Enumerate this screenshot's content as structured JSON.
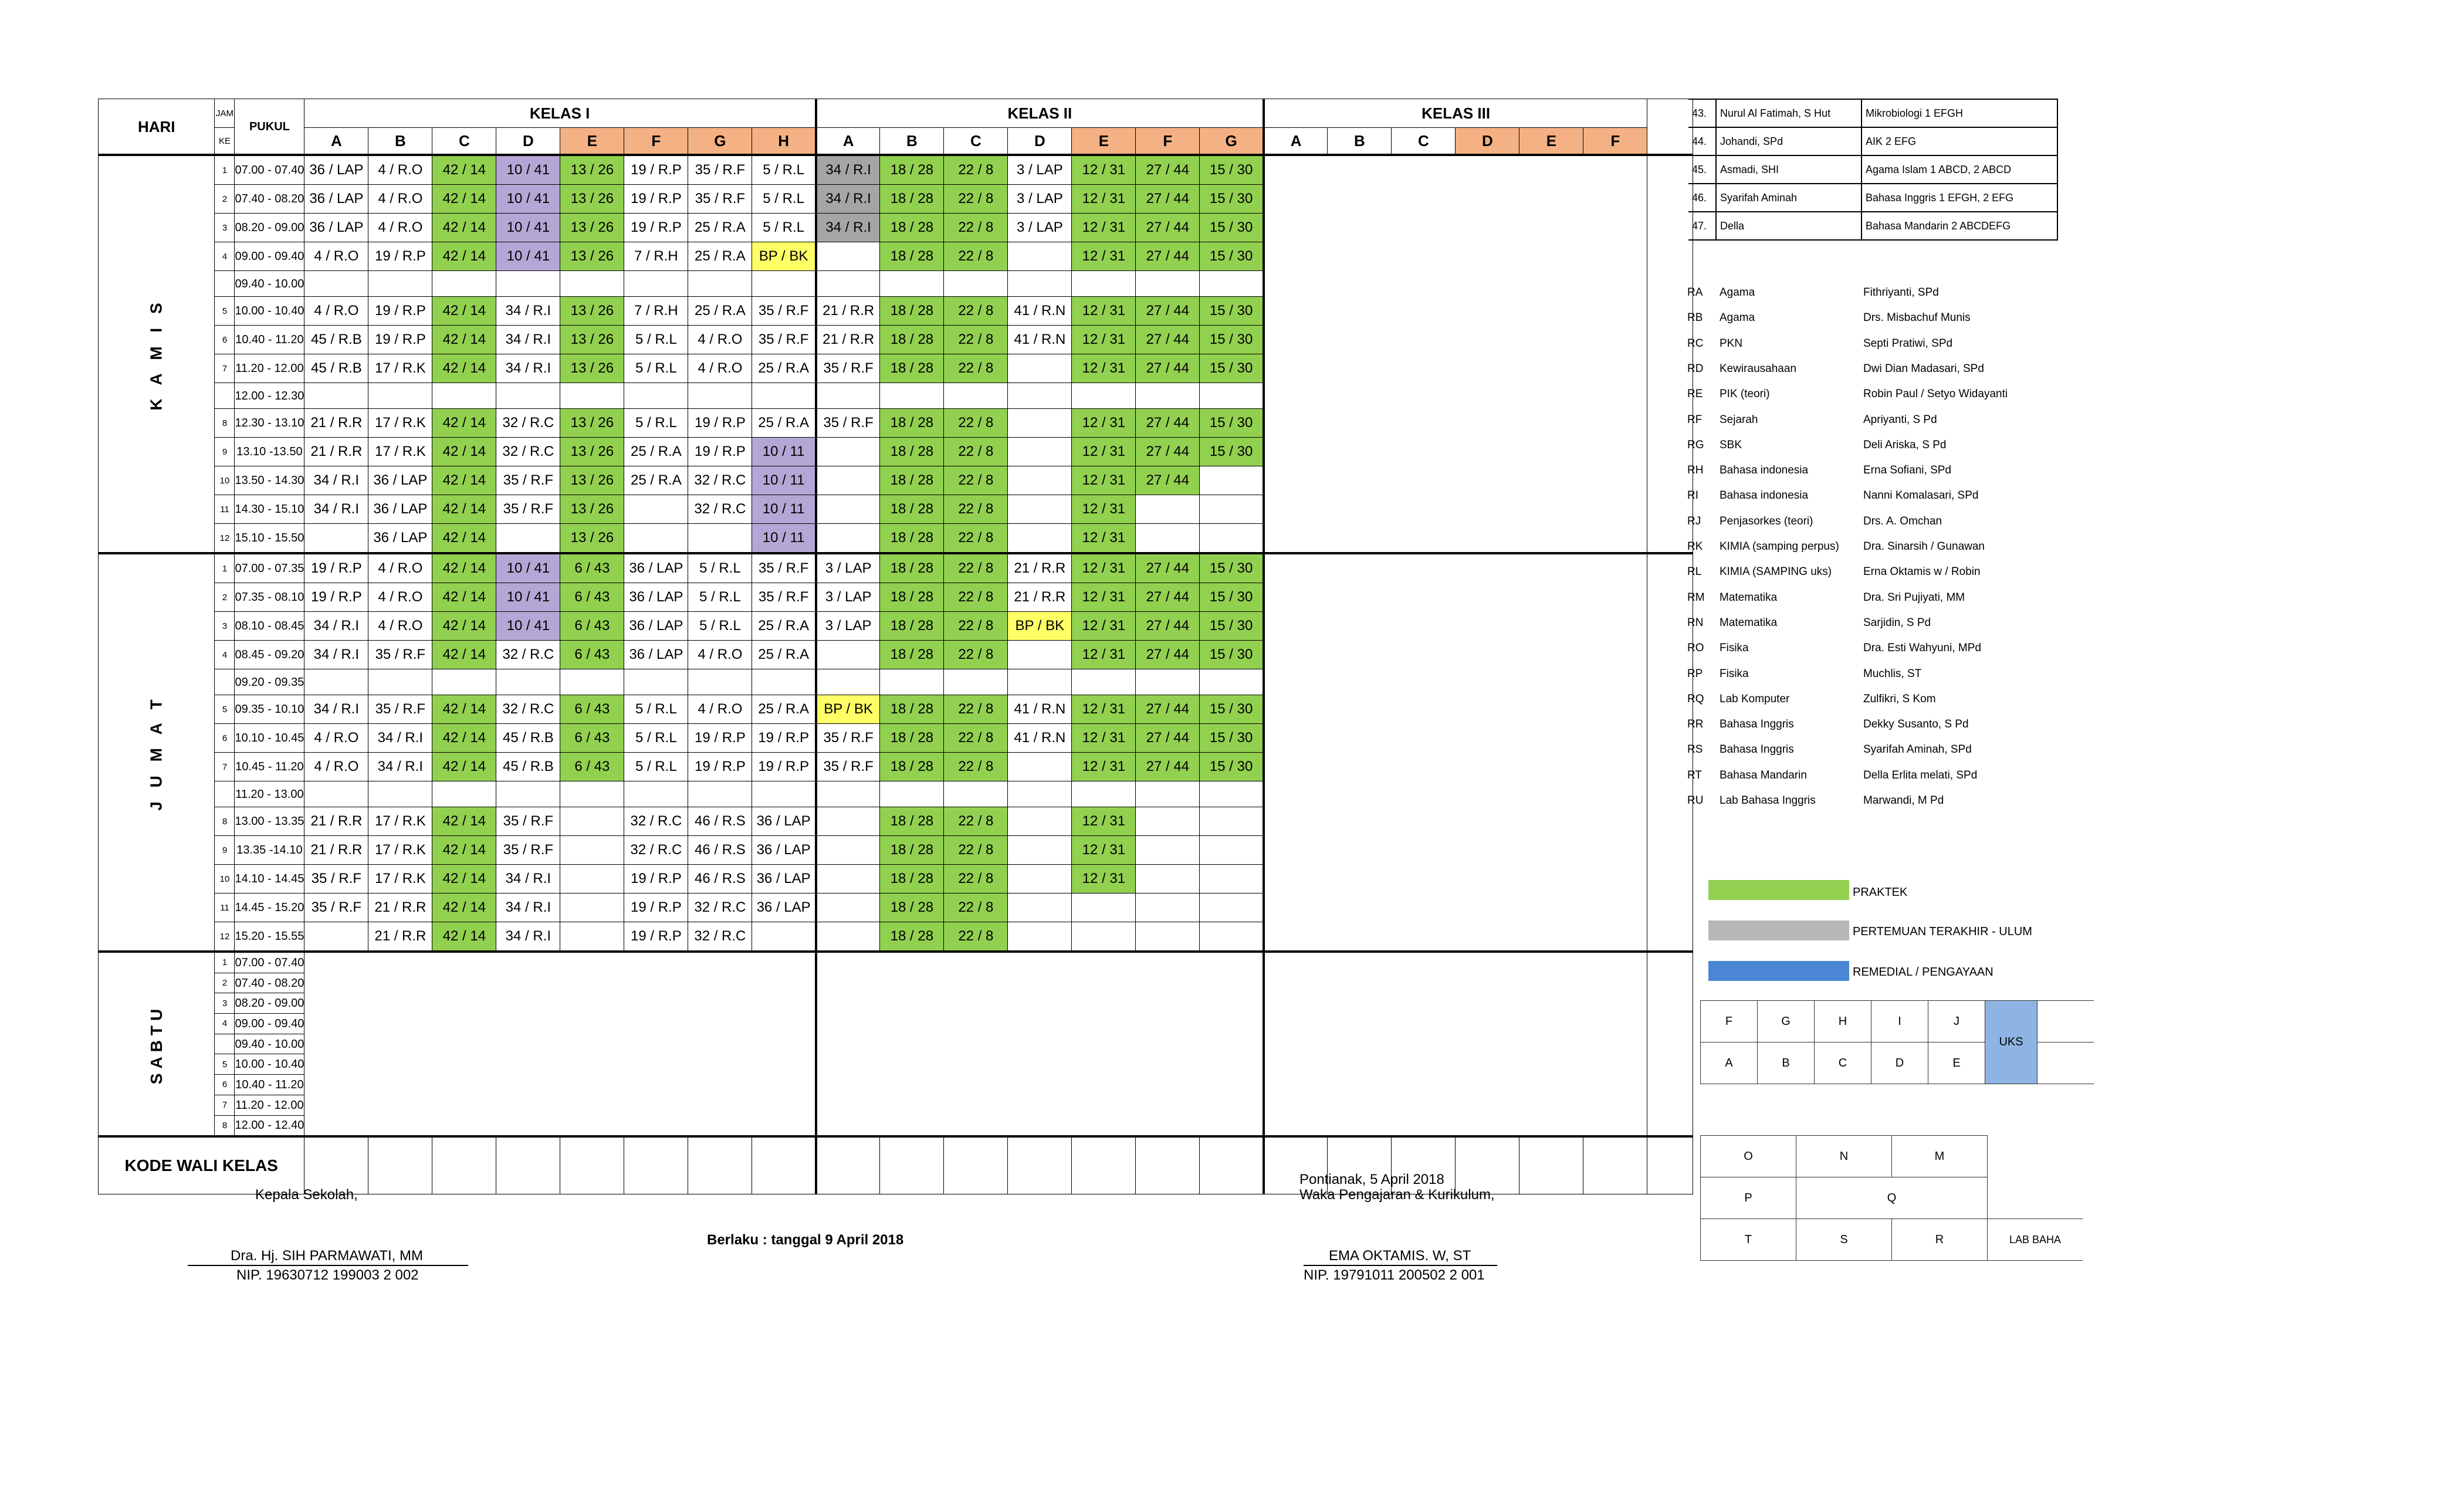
{
  "header": {
    "hari": "HARI",
    "jam_top": "JAM",
    "jam_bottom": "KE",
    "pukul": "PUKUL",
    "kelas1": "KELAS I",
    "kelas2": "KELAS II",
    "kelas3": "KELAS III",
    "classes1": [
      "A",
      "B",
      "C",
      "D",
      "E",
      "F",
      "G",
      "H"
    ],
    "classes2": [
      "A",
      "B",
      "C",
      "D",
      "E",
      "F",
      "G"
    ],
    "classes3": [
      "A",
      "B",
      "C",
      "D",
      "E",
      "F"
    ]
  },
  "days": {
    "kamis": "K A M I S",
    "jumat": "J U M A T",
    "sabtu": "SABTU"
  },
  "kamis_rows": [
    {
      "jam": "1",
      "time": "07.00 - 07.40",
      "k1": [
        "36 / LAP",
        "4 / R.O",
        "42 / 14",
        "10 / 41",
        "13 / 26",
        "19 / R.P",
        "35 / R.F",
        "5 / R.L"
      ],
      "k2": [
        "34 / R.I",
        "18 / 28",
        "22 / 8",
        "3 / LAP",
        "12 / 31",
        "27 / 44",
        "15 / 30"
      ]
    },
    {
      "jam": "2",
      "time": "07.40 - 08.20",
      "k1": [
        "36 / LAP",
        "4 / R.O",
        "42 / 14",
        "10 / 41",
        "13 / 26",
        "19 / R.P",
        "35 / R.F",
        "5 / R.L"
      ],
      "k2": [
        "34 / R.I",
        "18 / 28",
        "22 / 8",
        "3 / LAP",
        "12 / 31",
        "27 / 44",
        "15 / 30"
      ]
    },
    {
      "jam": "3",
      "time": "08.20 - 09.00",
      "k1": [
        "36 / LAP",
        "4 / R.O",
        "42 / 14",
        "10 / 41",
        "13 / 26",
        "19 / R.P",
        "25 / R.A",
        "5 / R.L"
      ],
      "k2": [
        "34 / R.I",
        "18 / 28",
        "22 / 8",
        "3 / LAP",
        "12 / 31",
        "27 / 44",
        "15 / 30"
      ]
    },
    {
      "jam": "4",
      "time": "09.00 - 09.40",
      "k1": [
        "4 / R.O",
        "19 / R.P",
        "42 / 14",
        "10 / 41",
        "13 / 26",
        "7 / R.H",
        "25 / R.A",
        "BP / BK"
      ],
      "k2": [
        "",
        "18 / 28",
        "22 / 8",
        "",
        "12 / 31",
        "27 / 44",
        "15 / 30"
      ]
    },
    {
      "jam": "",
      "time": "09.40 - 10.00",
      "k1": [
        "",
        "",
        "",
        "",
        "",
        "",
        "",
        ""
      ],
      "k2": [
        "",
        "",
        "",
        "",
        "",
        "",
        ""
      ]
    },
    {
      "jam": "5",
      "time": "10.00 - 10.40",
      "k1": [
        "4 / R.O",
        "19 / R.P",
        "42 / 14",
        "34 / R.I",
        "13 / 26",
        "7 / R.H",
        "25 / R.A",
        "35 / R.F"
      ],
      "k2": [
        "21 / R.R",
        "18 / 28",
        "22 / 8",
        "41 / R.N",
        "12 / 31",
        "27 / 44",
        "15 / 30"
      ]
    },
    {
      "jam": "6",
      "time": "10.40 - 11.20",
      "k1": [
        "45 / R.B",
        "19 / R.P",
        "42 / 14",
        "34 / R.I",
        "13 / 26",
        "5 / R.L",
        "4 / R.O",
        "35 / R.F"
      ],
      "k2": [
        "21 / R.R",
        "18 / 28",
        "22 / 8",
        "41 / R.N",
        "12 / 31",
        "27 / 44",
        "15 / 30"
      ]
    },
    {
      "jam": "7",
      "time": "11.20 - 12.00",
      "k1": [
        "45 / R.B",
        "17 / R.K",
        "42 / 14",
        "34 / R.I",
        "13 / 26",
        "5 / R.L",
        "4 / R.O",
        "25 / R.A"
      ],
      "k2": [
        "35 / R.F",
        "18 / 28",
        "22 / 8",
        "",
        "12 / 31",
        "27 / 44",
        "15 / 30"
      ]
    },
    {
      "jam": "",
      "time": "12.00 - 12.30",
      "k1": [
        "",
        "",
        "",
        "",
        "",
        "",
        "",
        ""
      ],
      "k2": [
        "",
        "",
        "",
        "",
        "",
        "",
        ""
      ]
    },
    {
      "jam": "8",
      "time": "12.30 - 13.10",
      "k1": [
        "21 / R.R",
        "17 / R.K",
        "42 / 14",
        "32 / R.C",
        "13 / 26",
        "5 / R.L",
        "19 / R.P",
        "25 / R.A"
      ],
      "k2": [
        "35 / R.F",
        "18 / 28",
        "22 / 8",
        "",
        "12 / 31",
        "27 / 44",
        "15 / 30"
      ]
    },
    {
      "jam": "9",
      "time": "13.10 -13.50",
      "k1": [
        "21 / R.R",
        "17 / R.K",
        "42 / 14",
        "32 / R.C",
        "13 / 26",
        "25 / R.A",
        "19 / R.P",
        "10 / 11"
      ],
      "k2": [
        "",
        "18 / 28",
        "22 / 8",
        "",
        "12 / 31",
        "27 / 44",
        "15 / 30"
      ]
    },
    {
      "jam": "10",
      "time": "13.50 - 14.30",
      "k1": [
        "34 / R.I",
        "36 / LAP",
        "42 / 14",
        "35 / R.F",
        "13 / 26",
        "25 / R.A",
        "32 / R.C",
        "10 / 11"
      ],
      "k2": [
        "",
        "18 / 28",
        "22 / 8",
        "",
        "12 / 31",
        "27 / 44",
        ""
      ]
    },
    {
      "jam": "11",
      "time": "14.30 - 15.10",
      "k1": [
        "34 / R.I",
        "36 / LAP",
        "42 / 14",
        "35 / R.F",
        "13 / 26",
        "",
        "32 / R.C",
        "10 / 11"
      ],
      "k2": [
        "",
        "18 / 28",
        "22 / 8",
        "",
        "12 / 31",
        "",
        ""
      ]
    },
    {
      "jam": "12",
      "time": "15.10 - 15.50",
      "k1": [
        "",
        "36 / LAP",
        "42 / 14",
        "",
        "13 / 26",
        "",
        "",
        "10 / 11"
      ],
      "k2": [
        "",
        "18 / 28",
        "22 / 8",
        "",
        "12 / 31",
        "",
        ""
      ]
    }
  ],
  "jumat_rows": [
    {
      "jam": "1",
      "time": "07.00 - 07.35",
      "k1": [
        "19 / R.P",
        "4 / R.O",
        "42 / 14",
        "10 / 41",
        "6 / 43",
        "36 / LAP",
        "5 / R.L",
        "35 / R.F"
      ],
      "k2": [
        "3 / LAP",
        "18 / 28",
        "22 / 8",
        "21 / R.R",
        "12 / 31",
        "27 / 44",
        "15 / 30"
      ]
    },
    {
      "jam": "2",
      "time": "07.35 - 08.10",
      "k1": [
        "19 / R.P",
        "4 / R.O",
        "42 / 14",
        "10 / 41",
        "6 / 43",
        "36 / LAP",
        "5 / R.L",
        "35 / R.F"
      ],
      "k2": [
        "3 / LAP",
        "18 / 28",
        "22 / 8",
        "21 / R.R",
        "12 / 31",
        "27 / 44",
        "15 / 30"
      ]
    },
    {
      "jam": "3",
      "time": "08.10 - 08.45",
      "k1": [
        "34 / R.I",
        "4 / R.O",
        "42 / 14",
        "10 / 41",
        "6 / 43",
        "36 / LAP",
        "5 / R.L",
        "25 / R.A"
      ],
      "k2": [
        "3 / LAP",
        "18 / 28",
        "22 / 8",
        "BP / BK",
        "12 / 31",
        "27 / 44",
        "15 / 30"
      ]
    },
    {
      "jam": "4",
      "time": "08.45 - 09.20",
      "k1": [
        "34 / R.I",
        "35 / R.F",
        "42 / 14",
        "32 / R.C",
        "6 / 43",
        "36 / LAP",
        "4 / R.O",
        "25 / R.A"
      ],
      "k2": [
        "",
        "18 / 28",
        "22 / 8",
        "",
        "12 / 31",
        "27 / 44",
        "15 / 30"
      ]
    },
    {
      "jam": "",
      "time": "09.20 - 09.35",
      "k1": [
        "",
        "",
        "",
        "",
        "",
        "",
        "",
        ""
      ],
      "k2": [
        "",
        "",
        "",
        "",
        "",
        "",
        ""
      ]
    },
    {
      "jam": "5",
      "time": "09.35 - 10.10",
      "k1": [
        "34 / R.I",
        "35 / R.F",
        "42 / 14",
        "32 / R.C",
        "6 / 43",
        "5 / R.L",
        "4 / R.O",
        "25 / R.A"
      ],
      "k2": [
        "BP / BK",
        "18 / 28",
        "22 / 8",
        "41 / R.N",
        "12 / 31",
        "27 / 44",
        "15 / 30"
      ]
    },
    {
      "jam": "6",
      "time": "10.10 - 10.45",
      "k1": [
        "4 / R.O",
        "34 / R.I",
        "42 / 14",
        "45 / R.B",
        "6 / 43",
        "5 / R.L",
        "19 / R.P",
        "19 / R.P"
      ],
      "k2": [
        "35 / R.F",
        "18 / 28",
        "22 / 8",
        "41 / R.N",
        "12 / 31",
        "27 / 44",
        "15 / 30"
      ]
    },
    {
      "jam": "7",
      "time": "10.45 - 11.20",
      "k1": [
        "4 / R.O",
        "34 / R.I",
        "42 / 14",
        "45 / R.B",
        "6 / 43",
        "5 / R.L",
        "19 / R.P",
        "19 / R.P"
      ],
      "k2": [
        "35 / R.F",
        "18 / 28",
        "22 / 8",
        "",
        "12 / 31",
        "27 / 44",
        "15 / 30"
      ]
    },
    {
      "jam": "",
      "time": "11.20 - 13.00",
      "k1": [
        "",
        "",
        "",
        "",
        "",
        "",
        "",
        ""
      ],
      "k2": [
        "",
        "",
        "",
        "",
        "",
        "",
        ""
      ]
    },
    {
      "jam": "8",
      "time": "13.00 - 13.35",
      "k1": [
        "21 / R.R",
        "17 / R.K",
        "42 / 14",
        "35 / R.F",
        "",
        "32 / R.C",
        "46 / R.S",
        "36 / LAP"
      ],
      "k2": [
        "",
        "18 / 28",
        "22 / 8",
        "",
        "12 / 31",
        "",
        ""
      ]
    },
    {
      "jam": "9",
      "time": "13.35 -14.10",
      "k1": [
        "21 / R.R",
        "17 / R.K",
        "42 / 14",
        "35 / R.F",
        "",
        "32 / R.C",
        "46 / R.S",
        "36 / LAP"
      ],
      "k2": [
        "",
        "18 / 28",
        "22 / 8",
        "",
        "12 / 31",
        "",
        ""
      ]
    },
    {
      "jam": "10",
      "time": "14.10 - 14.45",
      "k1": [
        "35 / R.F",
        "17 / R.K",
        "42 / 14",
        "34 / R.I",
        "",
        "19 / R.P",
        "46 / R.S",
        "36 / LAP"
      ],
      "k2": [
        "",
        "18 / 28",
        "22 / 8",
        "",
        "12 / 31",
        "",
        ""
      ]
    },
    {
      "jam": "11",
      "time": "14.45 - 15.20",
      "k1": [
        "35 / R.F",
        "21 / R.R",
        "42 / 14",
        "34 / R.I",
        "",
        "19 / R.P",
        "32 / R.C",
        "36 / LAP"
      ],
      "k2": [
        "",
        "18 / 28",
        "22 / 8",
        "",
        "",
        "",
        ""
      ]
    },
    {
      "jam": "12",
      "time": "15.20 - 15.55",
      "k1": [
        "",
        "21 / R.R",
        "42 / 14",
        "34 / R.I",
        "",
        "19 / R.P",
        "32 / R.C",
        ""
      ],
      "k2": [
        "",
        "18 / 28",
        "22 / 8",
        "",
        "",
        "",
        ""
      ]
    }
  ],
  "sabtu_rows": [
    {
      "jam": "1",
      "time": "07.00 - 07.40"
    },
    {
      "jam": "2",
      "time": "07.40 - 08.20"
    },
    {
      "jam": "3",
      "time": "08.20 - 09.00"
    },
    {
      "jam": "4",
      "time": "09.00 - 09.40"
    },
    {
      "jam": "",
      "time": "09.40 - 10.00"
    },
    {
      "jam": "5",
      "time": "10.00 - 10.40"
    },
    {
      "jam": "6",
      "time": "10.40 - 11.20"
    },
    {
      "jam": "7",
      "time": "11.20 - 12.00"
    },
    {
      "jam": "8",
      "time": "12.00 - 12.40"
    }
  ],
  "kode_wali_kelas": "KODE WALI KELAS",
  "colors": {
    "praktek_green": "#92d050",
    "purple": "#b4a7d6",
    "bpbk_yellow": "#ffff66",
    "last_meeting_gray": "#a5a5a5",
    "header_orange": "#f4b183",
    "remedial_blue": "#4a86d4",
    "uks_blue": "#8eb4e3"
  },
  "teachers": [
    {
      "no": "43.",
      "name": "Nurul Al Fatimah, S Hut",
      "subject": "Mikrobiologi 1 EFGH"
    },
    {
      "no": "44.",
      "name": "Johandi, SPd",
      "subject": "AIK 2 EFG"
    },
    {
      "no": "45.",
      "name": "Asmadi, SHI",
      "subject": "Agama Islam 1 ABCD, 2 ABCD"
    },
    {
      "no": "46.",
      "name": "Syarifah Aminah",
      "subject": "Bahasa Inggris 1 EFGH, 2 EFG"
    },
    {
      "no": "47.",
      "name": "Della",
      "subject": "Bahasa Mandarin 2 ABCDEFG"
    }
  ],
  "rooms": [
    {
      "code": "RA",
      "subject": "Agama",
      "teacher": "Fithriyanti, SPd"
    },
    {
      "code": "RB",
      "subject": "Agama",
      "teacher": "Drs. Misbachuf Munis"
    },
    {
      "code": "RC",
      "subject": "PKN",
      "teacher": "Septi Pratiwi, SPd"
    },
    {
      "code": "RD",
      "subject": "Kewirausahaan",
      "teacher": "Dwi Dian Madasari, SPd"
    },
    {
      "code": "RE",
      "subject": "PIK (teori)",
      "teacher": "Robin Paul / Setyo Widayanti"
    },
    {
      "code": "RF",
      "subject": "Sejarah",
      "teacher": "Apriyanti, S Pd"
    },
    {
      "code": "RG",
      "subject": "SBK",
      "teacher": "Deli Ariska, S Pd"
    },
    {
      "code": "RH",
      "subject": "Bahasa indonesia",
      "teacher": "Erna Sofiani, SPd"
    },
    {
      "code": "RI",
      "subject": "Bahasa indonesia",
      "teacher": "Nanni Komalasari, SPd"
    },
    {
      "code": "RJ",
      "subject": "Penjasorkes (teori)",
      "teacher": "Drs. A. Omchan"
    },
    {
      "code": "RK",
      "subject": "KIMIA  (samping perpus)",
      "teacher": "Dra. Sinarsih / Gunawan"
    },
    {
      "code": "RL",
      "subject": "KIMIA (SAMPING uks)",
      "teacher": "Erna Oktamis w / Robin"
    },
    {
      "code": "RM",
      "subject": "Matematika",
      "teacher": "Dra. Sri Pujiyati, MM"
    },
    {
      "code": "RN",
      "subject": "Matematika",
      "teacher": "Sarjidin, S Pd"
    },
    {
      "code": "RO",
      "subject": "Fisika",
      "teacher": "Dra. Esti Wahyuni, MPd"
    },
    {
      "code": "RP",
      "subject": "Fisika",
      "teacher": "Muchlis, ST"
    },
    {
      "code": "RQ",
      "subject": "Lab Komputer",
      "teacher": "Zulfikri, S Kom"
    },
    {
      "code": "RR",
      "subject": "Bahasa Inggris",
      "teacher": "Dekky Susanto, S Pd"
    },
    {
      "code": "RS",
      "subject": "Bahasa Inggris",
      "teacher": "Syarifah Aminah, SPd"
    },
    {
      "code": "RT",
      "subject": "Bahasa Mandarin",
      "teacher": "Della Erlita melati, SPd"
    },
    {
      "code": "RU",
      "subject": "Lab Bahasa Inggris",
      "teacher": "Marwandi, M Pd"
    }
  ],
  "legend": {
    "praktek": "PRAKTEK",
    "pertemuan": "PERTEMUAN TERAKHIR  - ULUM",
    "remedial": "REMEDIAL / PENGAYAAN"
  },
  "room_map1": {
    "row1": [
      "F",
      "G",
      "H",
      "I",
      "J"
    ],
    "row2": [
      "A",
      "B",
      "C",
      "D",
      "E"
    ],
    "uks": "UKS"
  },
  "room_map2": {
    "row1": [
      "O",
      "N",
      "M"
    ],
    "row2": [
      "P",
      "Q"
    ],
    "row3": [
      "T",
      "S",
      "R"
    ],
    "lab": "LAB BAHA"
  },
  "footer": {
    "kepala_title": "Kepala Sekolah,",
    "kepala_name": "Dra. Hj. SIH PARMAWATI, MM",
    "kepala_nip": "NIP. 19630712 199003 2 002",
    "berlaku": "Berlaku : tanggal 9 April 2018",
    "place_date": "Pontianak, 5 April  2018",
    "waka_title": "Waka Pengajaran & Kurikulum,",
    "waka_name": "EMA OKTAMIS. W, ST",
    "waka_nip": "NIP. 19791011 200502 2 001"
  }
}
